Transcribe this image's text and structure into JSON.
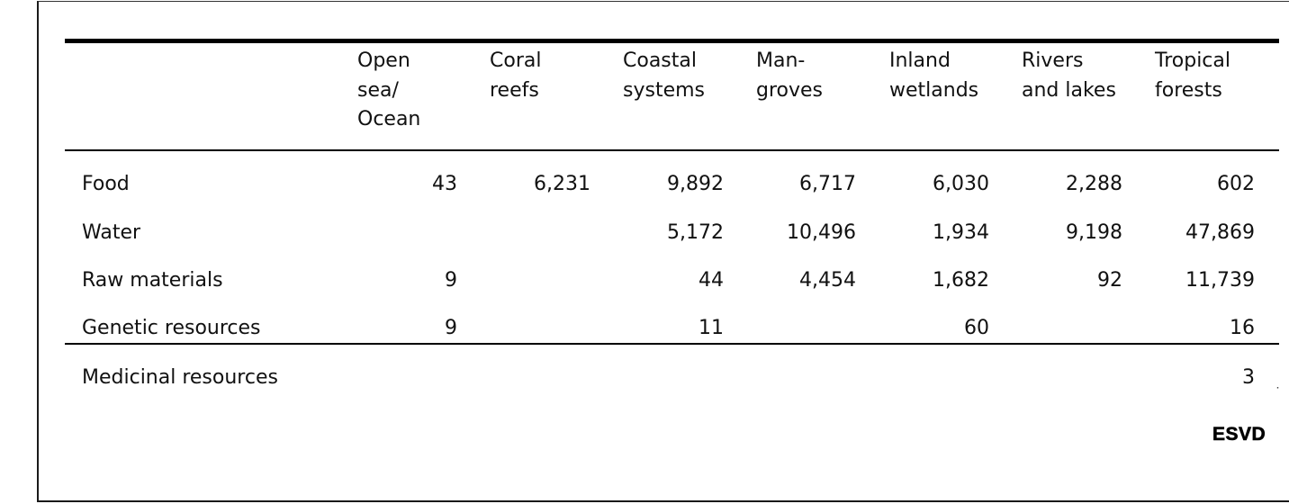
{
  "table": {
    "columns": [
      {
        "label": "Open\nsea/\nOcean"
      },
      {
        "label": "Coral\nreefs"
      },
      {
        "label": "Coastal\nsystems"
      },
      {
        "label": "Man-\ngroves"
      },
      {
        "label": "Inland\nwetlands"
      },
      {
        "label": "Rivers\nand lakes"
      },
      {
        "label": "Tropical\nforests"
      }
    ],
    "rows": [
      {
        "label": "Food",
        "values": [
          "43",
          "6,231",
          "9,892",
          "6,717",
          "6,030",
          "2,288",
          "602"
        ]
      },
      {
        "label": "Water",
        "values": [
          "",
          "",
          "5,172",
          "10,496",
          "1,934",
          "9,198",
          "47,869"
        ]
      },
      {
        "label": "Raw materials",
        "values": [
          "9",
          "",
          "44",
          "4,454",
          "1,682",
          "92",
          "11,739"
        ]
      },
      {
        "label": "Genetic resources",
        "values": [
          "9",
          "",
          "11",
          "",
          "60",
          "",
          "16"
        ]
      },
      {
        "label": "Medicinal resources",
        "values": [
          "",
          "",
          "",
          "",
          "",
          "",
          "3"
        ]
      }
    ]
  },
  "logo_text": "ESVD"
}
